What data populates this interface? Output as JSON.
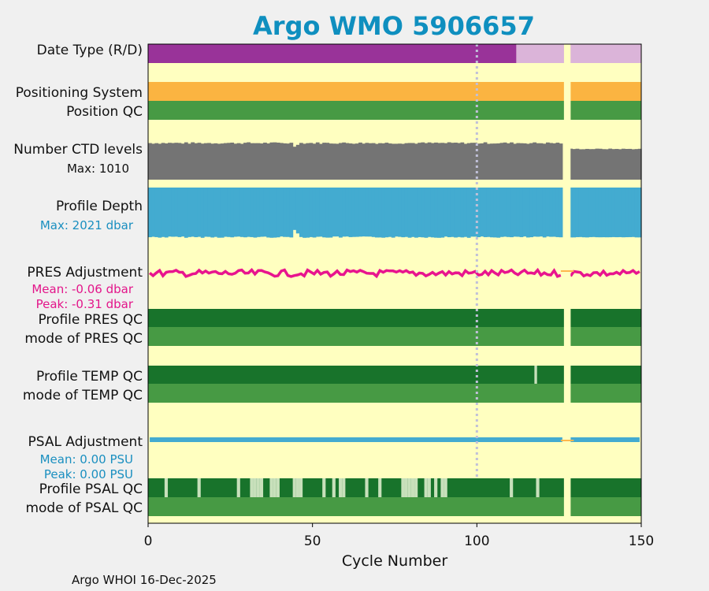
{
  "chart_data": {
    "type": "table",
    "title": "Argo WMO 5906657",
    "xlabel": "Cycle Number",
    "xlim": [
      0,
      150
    ],
    "xticks": [
      0,
      50,
      100,
      150
    ],
    "marker_cycle": 100,
    "missing_cycles": [
      127,
      128
    ],
    "footer": "Argo WHOI 16-Dec-2025",
    "colors": {
      "background": "#ffffc0",
      "title": "#0f8fbf",
      "realtime": "#993399",
      "delayed": "#dbb4d9",
      "positioning": "#fbb441",
      "qc_good": "#479a44",
      "qc_dark": "#18732b",
      "qc_light": "#c8e0bb",
      "ctd": "#747474",
      "depth": "#43abd0",
      "pres_adj": "#e8148e",
      "psal_adj": "#43abd0",
      "gap_line": "#ffb74d"
    },
    "rows": {
      "date_type": {
        "label": "Date Type (R/D)",
        "realtime_cycles": [
          0,
          112
        ],
        "delayed_cycles": [
          112,
          150
        ]
      },
      "positioning_system": {
        "label": "Positioning System"
      },
      "position_qc": {
        "label": "Position QC"
      },
      "ctd_levels": {
        "label": "Number CTD levels",
        "annotation": "Max: 1010",
        "max": 1010,
        "typical_level_cycles_1_126": 955,
        "typical_level_cycles_129_150": 810,
        "dip_cycles": [
          45,
          46
        ]
      },
      "profile_depth": {
        "label": "Profile Depth",
        "annotation": "Max: 2021 dbar",
        "max": 2021,
        "dip_cycles": [
          45,
          46
        ]
      },
      "pres_adjustment": {
        "label": "PRES Adjustment",
        "mean_text": "Mean: -0.06 dbar",
        "peak_text": "Peak: -0.31 dbar",
        "mean": -0.06,
        "peak": -0.31
      },
      "profile_pres_qc": {
        "label": "Profile PRES QC"
      },
      "mode_pres_qc": {
        "label": "mode of PRES QC"
      },
      "profile_temp_qc": {
        "label": "Profile TEMP QC",
        "light_cycles": [
          118
        ]
      },
      "mode_temp_qc": {
        "label": "mode of TEMP QC"
      },
      "psal_adjustment": {
        "label": "PSAL Adjustment",
        "mean_text": "Mean: 0.00 PSU",
        "peak_text": "Peak: 0.00 PSU",
        "mean": 0.0,
        "peak": 0.0
      },
      "profile_psal_qc": {
        "label": "Profile PSAL QC",
        "light_cycles": [
          6,
          16,
          28,
          32,
          33,
          34,
          35,
          38,
          39,
          40,
          45,
          46,
          47,
          54,
          57,
          59,
          60,
          67,
          71,
          78,
          79,
          80,
          81,
          82,
          85,
          86,
          88,
          90,
          91,
          111,
          119
        ]
      },
      "mode_psal_qc": {
        "label": "mode of PSAL QC"
      }
    }
  }
}
